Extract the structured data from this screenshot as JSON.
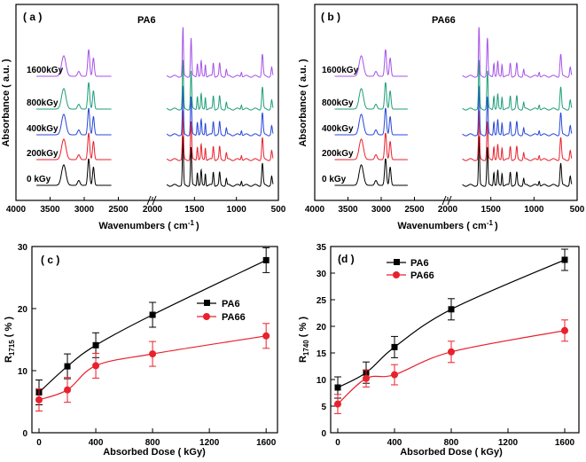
{
  "chart_data": [
    {
      "panel_id": "a",
      "type": "line",
      "panel_label": "( a )",
      "title": "PA6",
      "xlabel": "Wavenumbers ( cm",
      "xlabel_sup": "-1",
      "xlabel_end": ")",
      "ylabel": "Absorbance  ( a.u. )",
      "x_ticks": [
        "4000",
        "3500",
        "3000",
        "2500",
        "2000",
        "1500",
        "1000",
        "500"
      ],
      "axis_break": true,
      "series": [
        {
          "name": "0 kGy",
          "label": "0 kGy",
          "color": "#000000"
        },
        {
          "name": "200kGy",
          "label": "200kGy",
          "color": "#e8212d"
        },
        {
          "name": "400kGy",
          "label": "400kGy",
          "color": "#2747d8"
        },
        {
          "name": "800kGy",
          "label": "800kGy",
          "color": "#1f9e78"
        },
        {
          "name": "1600kGy",
          "label": "1600kGy",
          "color": "#a653e8"
        }
      ]
    },
    {
      "panel_id": "b",
      "type": "line",
      "panel_label": "( b )",
      "title": "PA66",
      "xlabel": "Wavenumbers ( cm",
      "xlabel_sup": "-1",
      "xlabel_end": ")",
      "ylabel": "Absorbance  ( a.u. )",
      "x_ticks": [
        "4000",
        "3500",
        "3000",
        "2500",
        "2000",
        "1500",
        "1000",
        "500"
      ],
      "axis_break": true,
      "series": [
        {
          "name": "0 kGy",
          "label": "0 kGy",
          "color": "#000000"
        },
        {
          "name": "200kGy",
          "label": "200kGy",
          "color": "#e8212d"
        },
        {
          "name": "400kGy",
          "label": "400kGy",
          "color": "#2747d8"
        },
        {
          "name": "800kGy",
          "label": "800kGy",
          "color": "#1f9e78"
        },
        {
          "name": "1600kGy",
          "label": "1600kGy",
          "color": "#a653e8"
        }
      ]
    },
    {
      "panel_id": "c",
      "type": "scatter",
      "panel_label": "( c )",
      "xlabel": "Absorbed Dose ( kGy)",
      "ylabel_main": "R",
      "ylabel_sub": "1715",
      "ylabel_end": " ( % )",
      "xlim": [
        -50,
        1680
      ],
      "ylim": [
        0,
        30
      ],
      "x_ticks": [
        "0",
        "400",
        "800",
        "1200",
        "1600"
      ],
      "y_ticks": [
        "0",
        "10",
        "20",
        "30"
      ],
      "legend": "center-right",
      "series": [
        {
          "name": "PA6",
          "color": "#000000",
          "marker": "square",
          "x": [
            0,
            200,
            400,
            800,
            1600
          ],
          "y": [
            6.5,
            10.7,
            14.1,
            19.0,
            27.8
          ],
          "err": [
            2.0,
            2.0,
            2.0,
            2.0,
            2.0
          ]
        },
        {
          "name": "PA66",
          "color": "#e8212d",
          "marker": "circle",
          "x": [
            0,
            200,
            400,
            800,
            1600
          ],
          "y": [
            5.3,
            6.9,
            10.8,
            12.7,
            15.6
          ],
          "err": [
            1.8,
            2.0,
            2.0,
            2.0,
            2.0
          ]
        }
      ]
    },
    {
      "panel_id": "d",
      "type": "scatter",
      "panel_label": "(d )",
      "xlabel": "Absorbed Dose ( kGy)",
      "ylabel_main": "R",
      "ylabel_sub": "1740",
      "ylabel_end": " ( % )",
      "xlim": [
        -50,
        1700
      ],
      "ylim": [
        0,
        35
      ],
      "x_ticks": [
        "0",
        "400",
        "800",
        "1200",
        "1600"
      ],
      "y_ticks": [
        "0",
        "5",
        "10",
        "15",
        "20",
        "25",
        "30",
        "35"
      ],
      "legend": "top-left",
      "series": [
        {
          "name": "PA6",
          "color": "#000000",
          "marker": "square",
          "x": [
            0,
            200,
            400,
            800,
            1600
          ],
          "y": [
            8.5,
            11.3,
            16.1,
            23.2,
            32.5
          ],
          "err": [
            2.0,
            2.0,
            2.0,
            2.0,
            2.0
          ]
        },
        {
          "name": "PA66",
          "color": "#e8212d",
          "marker": "circle",
          "x": [
            0,
            200,
            400,
            800,
            1600
          ],
          "y": [
            5.4,
            10.2,
            10.9,
            15.2,
            19.2
          ],
          "err": [
            1.8,
            1.6,
            1.9,
            2.0,
            2.0
          ]
        }
      ]
    }
  ]
}
